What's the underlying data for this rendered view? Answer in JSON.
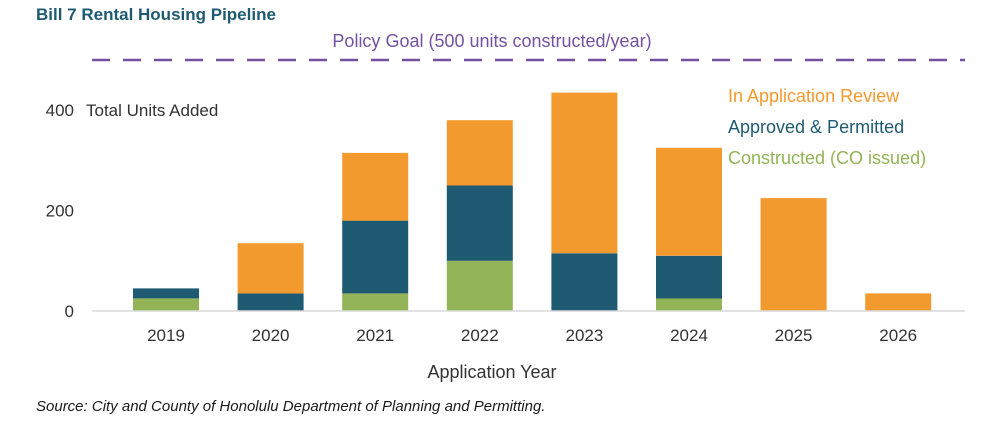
{
  "chart_data": {
    "type": "bar",
    "stacked": true,
    "title": "Bill 7 Rental Housing Pipeline",
    "ylabel": "Total Units Added",
    "xlabel": "Application Year",
    "categories": [
      "2019",
      "2020",
      "2021",
      "2022",
      "2023",
      "2024",
      "2025",
      "2026"
    ],
    "y_ticks": [
      "0",
      "200",
      "400"
    ],
    "ylim": [
      0,
      500
    ],
    "grid": false,
    "legend_position": "top-right",
    "series": [
      {
        "name": "Constructed (CO issued)",
        "color": "#92b456",
        "values": [
          25,
          0,
          35,
          100,
          0,
          25,
          0,
          0
        ]
      },
      {
        "name": "Approved & Permitted",
        "color": "#1f5a73",
        "values": [
          20,
          35,
          145,
          150,
          115,
          85,
          0,
          0
        ]
      },
      {
        "name": "In Application Review",
        "color": "#f39a2f",
        "values": [
          0,
          100,
          135,
          130,
          320,
          215,
          225,
          35
        ]
      }
    ],
    "goal_line": {
      "value": 500,
      "label": "Policy Goal (500 units constructed/year)",
      "color": "#7451a1"
    },
    "source": "Source: City and County of Honolulu Department of Planning and Permitting.",
    "title_color": "#1f5a73"
  }
}
